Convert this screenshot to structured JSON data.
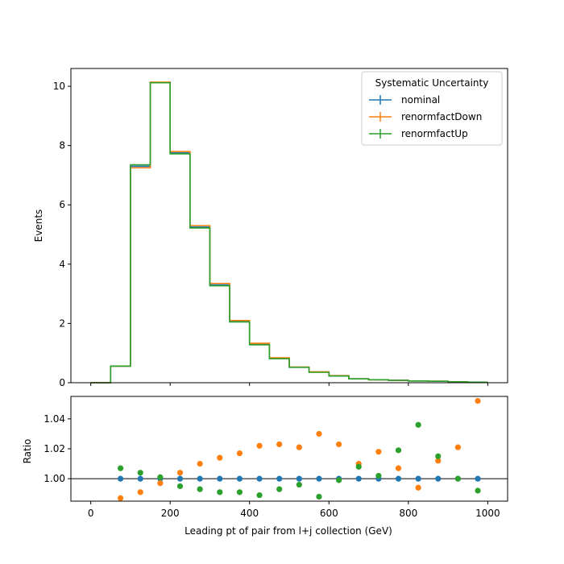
{
  "colors": {
    "nominal": "#1f77b4",
    "renormfactDown": "#ff7f0e",
    "renormfactUp": "#2ca02c",
    "axis": "#000000",
    "background": "#ffffff"
  },
  "chart_data": [
    {
      "type": "step-histogram",
      "xlabel": "",
      "ylabel": "Events",
      "xlim": [
        -50,
        1050
      ],
      "ylim": [
        0,
        10.6
      ],
      "yticks": [
        0,
        2,
        4,
        6,
        8,
        10
      ],
      "ytick_labels": [
        "0",
        "2",
        "4",
        "6",
        "8",
        "10"
      ],
      "xticks": [
        0,
        200,
        400,
        600,
        800,
        1000
      ],
      "bin_edges": [
        0,
        50,
        100,
        150,
        200,
        250,
        300,
        350,
        400,
        450,
        500,
        550,
        600,
        650,
        700,
        750,
        800,
        850,
        900,
        950,
        1000
      ],
      "legend": {
        "title": "Systematic Uncertainty",
        "location": "top-right",
        "entries": [
          "nominal",
          "renormfactDown",
          "renormfactUp"
        ]
      },
      "series": [
        {
          "name": "nominal",
          "values": [
            0.0,
            0.56,
            7.3,
            10.12,
            7.75,
            5.25,
            3.3,
            2.07,
            1.3,
            0.82,
            0.52,
            0.36,
            0.23,
            0.13,
            0.1,
            0.08,
            0.06,
            0.05,
            0.03,
            0.02
          ]
        },
        {
          "name": "renormfactDown",
          "values": [
            0.0,
            0.56,
            7.25,
            10.14,
            7.8,
            5.3,
            3.35,
            2.1,
            1.33,
            0.84,
            0.53,
            0.37,
            0.24,
            0.13,
            0.1,
            0.08,
            0.06,
            0.05,
            0.03,
            0.02
          ]
        },
        {
          "name": "renormfactUp",
          "values": [
            0.0,
            0.56,
            7.35,
            10.12,
            7.72,
            5.22,
            3.27,
            2.05,
            1.28,
            0.81,
            0.52,
            0.35,
            0.23,
            0.13,
            0.1,
            0.08,
            0.06,
            0.05,
            0.03,
            0.02
          ]
        }
      ]
    },
    {
      "type": "scatter",
      "xlabel": "Leading pt of pair from l+j collection (GeV)",
      "ylabel": "Ratio",
      "xlim": [
        -50,
        1050
      ],
      "ylim": [
        0.985,
        1.055
      ],
      "yticks": [
        1.0,
        1.02,
        1.04
      ],
      "ytick_labels": [
        "1.00",
        "1.02",
        "1.04"
      ],
      "xticks": [
        0,
        200,
        400,
        600,
        800,
        1000
      ],
      "xtick_labels": [
        "0",
        "200",
        "400",
        "600",
        "800",
        "1000"
      ],
      "reference_line": 1.0,
      "x": [
        75,
        125,
        175,
        225,
        275,
        325,
        375,
        425,
        475,
        525,
        575,
        625,
        675,
        725,
        775,
        825,
        875,
        925,
        975
      ],
      "series": [
        {
          "name": "nominal",
          "values": [
            1.0,
            1.0,
            1.0,
            1.0,
            1.0,
            1.0,
            1.0,
            1.0,
            1.0,
            1.0,
            1.0,
            1.0,
            1.0,
            1.0,
            1.0,
            1.0,
            1.0,
            1.0,
            1.0
          ]
        },
        {
          "name": "renormfactDown",
          "values": [
            0.987,
            0.991,
            0.997,
            1.004,
            1.01,
            1.014,
            1.017,
            1.022,
            1.023,
            1.021,
            1.03,
            1.023,
            1.01,
            1.018,
            1.007,
            0.994,
            1.012,
            1.021,
            1.052
          ]
        },
        {
          "name": "renormfactUp",
          "values": [
            1.007,
            1.004,
            1.001,
            0.995,
            0.993,
            0.991,
            0.991,
            0.989,
            0.993,
            0.996,
            0.988,
            0.999,
            1.008,
            1.002,
            1.019,
            1.036,
            1.015,
            1.0,
            0.992
          ]
        }
      ]
    }
  ]
}
